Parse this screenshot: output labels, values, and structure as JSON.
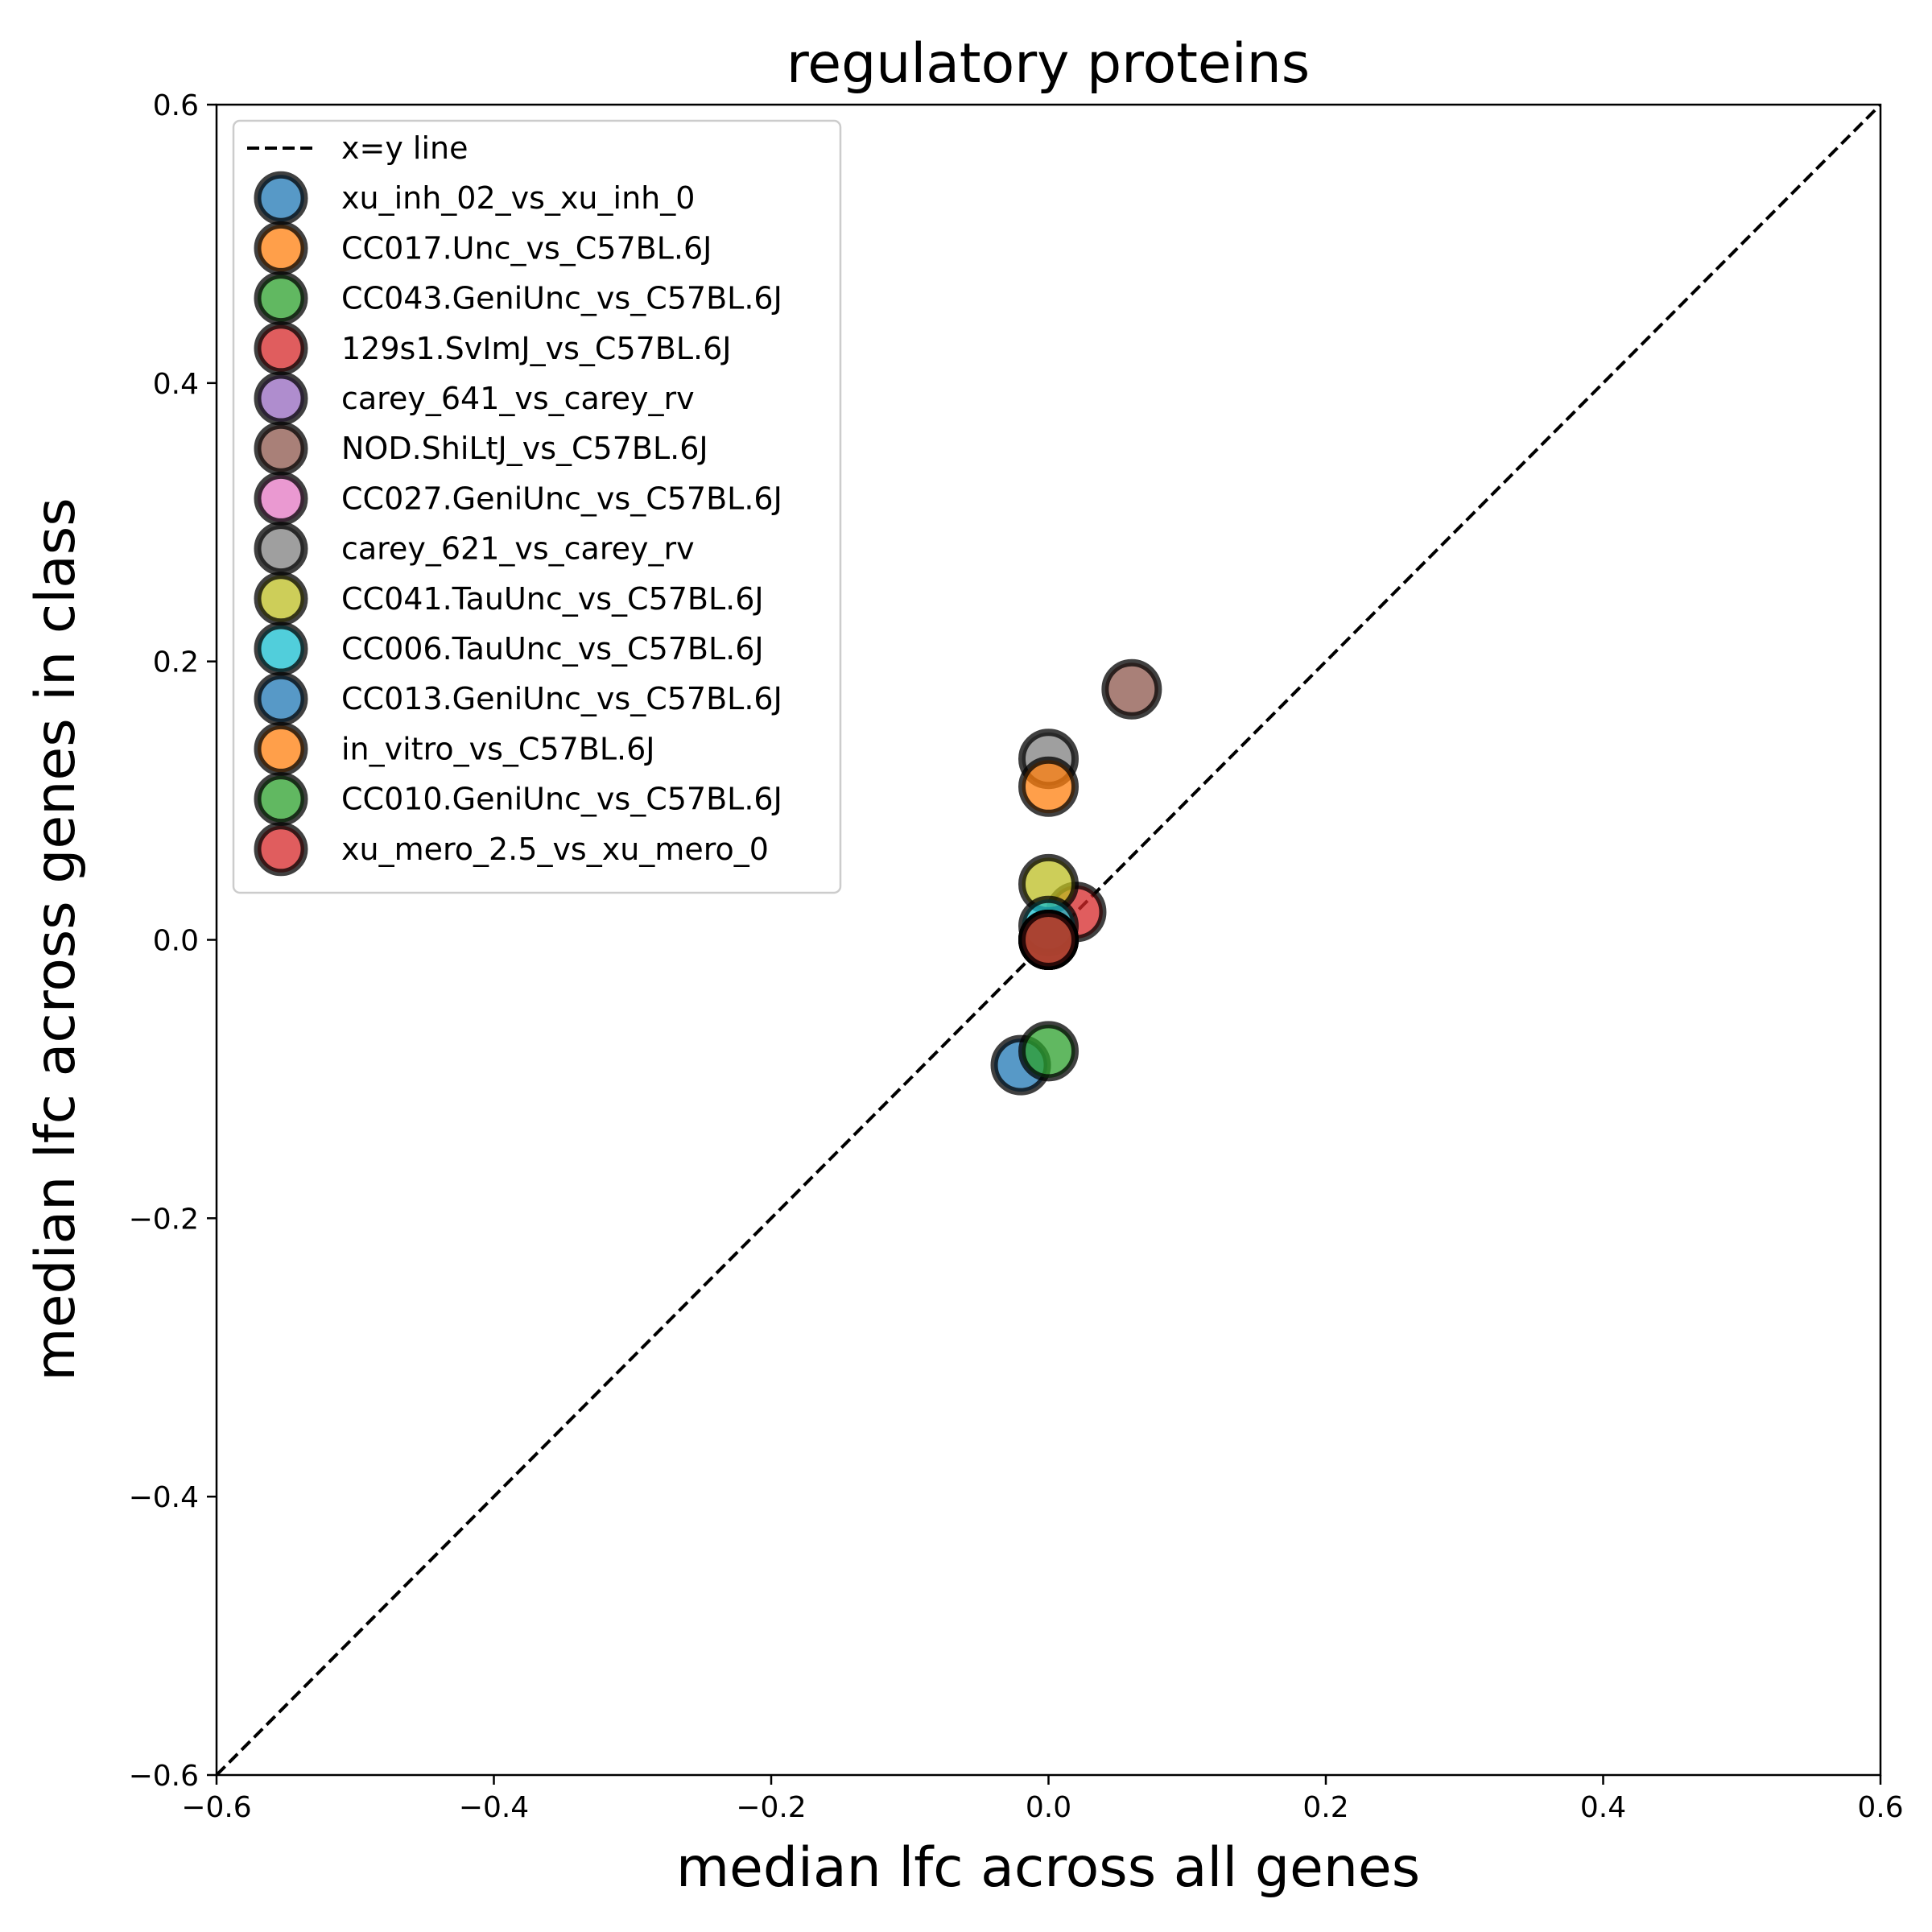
{
  "chart_data": {
    "type": "scatter",
    "title": "regulatory proteins",
    "xlabel": "median lfc across all genes",
    "ylabel": "median lfc across genes in class",
    "xlim": [
      -0.6,
      0.6
    ],
    "ylim": [
      -0.6,
      0.6
    ],
    "xticks": [
      -0.6,
      -0.4,
      -0.2,
      0.0,
      0.2,
      0.4,
      0.6
    ],
    "yticks": [
      -0.6,
      -0.4,
      -0.2,
      0.0,
      0.2,
      0.4,
      0.6
    ],
    "xtick_labels": [
      "−0.6",
      "−0.4",
      "−0.2",
      "0.0",
      "0.2",
      "0.4",
      "0.6"
    ],
    "ytick_labels": [
      "−0.6",
      "−0.4",
      "−0.2",
      "0.0",
      "0.2",
      "0.4",
      "0.6"
    ],
    "grid": false,
    "legend_position": "upper-left",
    "reference_line": {
      "name": "x=y line",
      "style": "dashed",
      "color": "#000000"
    },
    "series": [
      {
        "name": "xu_inh_02_vs_xu_inh_0",
        "color": "#1f77b4",
        "x": -0.02,
        "y": -0.09
      },
      {
        "name": "CC017.Unc_vs_C57BL.6J",
        "color": "#ff7f0e",
        "x": 0.0,
        "y": 0.0
      },
      {
        "name": "CC043.GeniUnc_vs_C57BL.6J",
        "color": "#2ca02c",
        "x": 0.0,
        "y": -0.08
      },
      {
        "name": "129s1.SvImJ_vs_C57BL.6J",
        "color": "#d62728",
        "x": 0.02,
        "y": 0.02
      },
      {
        "name": "carey_641_vs_carey_rv",
        "color": "#9467bd",
        "x": 0.0,
        "y": 0.0
      },
      {
        "name": "NOD.ShiLtJ_vs_C57BL.6J",
        "color": "#8c564b",
        "x": 0.06,
        "y": 0.18
      },
      {
        "name": "CC027.GeniUnc_vs_C57BL.6J",
        "color": "#e377c2",
        "x": 0.0,
        "y": 0.0
      },
      {
        "name": "carey_621_vs_carey_rv",
        "color": "#7f7f7f",
        "x": 0.0,
        "y": 0.13
      },
      {
        "name": "CC041.TauUnc_vs_C57BL.6J",
        "color": "#bcbd22",
        "x": 0.0,
        "y": 0.04
      },
      {
        "name": "CC006.TauUnc_vs_C57BL.6J",
        "color": "#17becf",
        "x": 0.0,
        "y": 0.01
      },
      {
        "name": "CC013.GeniUnc_vs_C57BL.6J",
        "color": "#1f77b4",
        "x": 0.0,
        "y": 0.0
      },
      {
        "name": "in_vitro_vs_C57BL.6J",
        "color": "#ff7f0e",
        "x": 0.0,
        "y": 0.11
      },
      {
        "name": "CC010.GeniUnc_vs_C57BL.6J",
        "color": "#2ca02c",
        "x": 0.0,
        "y": 0.0
      },
      {
        "name": "xu_mero_2.5_vs_xu_mero_0",
        "color": "#d62728",
        "x": 0.0,
        "y": 0.0
      }
    ]
  }
}
